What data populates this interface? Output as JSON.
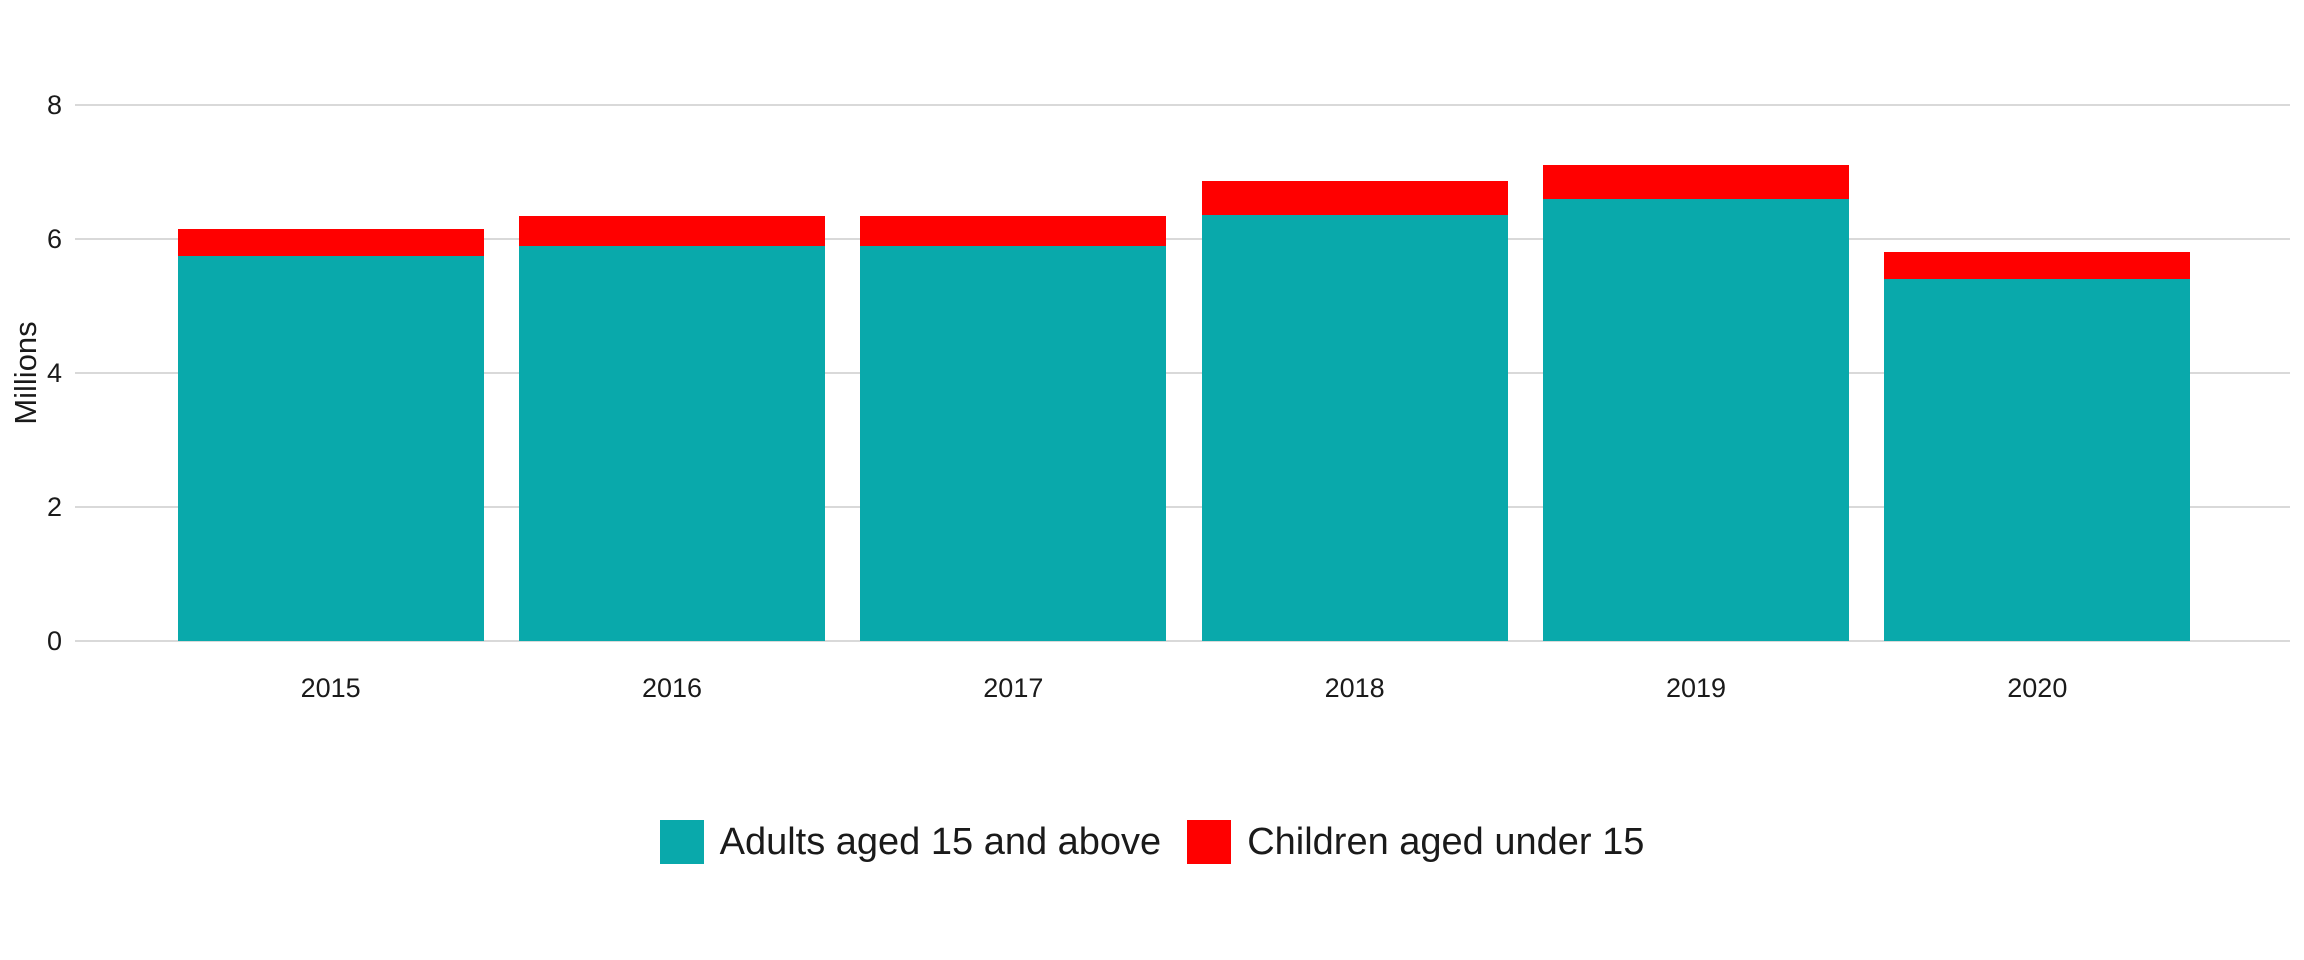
{
  "chart_data": {
    "type": "bar",
    "stacked": true,
    "title": "",
    "xlabel": "",
    "ylabel": "Millions",
    "categories": [
      "2015",
      "2016",
      "2017",
      "2018",
      "2019",
      "2020"
    ],
    "series": [
      {
        "name": "Adults aged 15 and above",
        "color": "#09a9ab",
        "values": [
          5.75,
          5.9,
          5.89,
          6.36,
          6.59,
          5.41
        ]
      },
      {
        "name": "Children aged under 15",
        "color": "#ff0000",
        "values": [
          0.41,
          0.45,
          0.45,
          0.5,
          0.51,
          0.41
        ]
      }
    ],
    "totals": [
      6.16,
      6.35,
      6.34,
      6.86,
      7.1,
      5.82
    ],
    "yticks": [
      0,
      2,
      4,
      6,
      8
    ],
    "ylim": [
      0,
      8
    ],
    "grid": "horizontal",
    "gridline_color": "#d9d9d9",
    "background_color": "#ffffff",
    "text_color": "#1a1a1a",
    "legend_position": "bottom"
  }
}
